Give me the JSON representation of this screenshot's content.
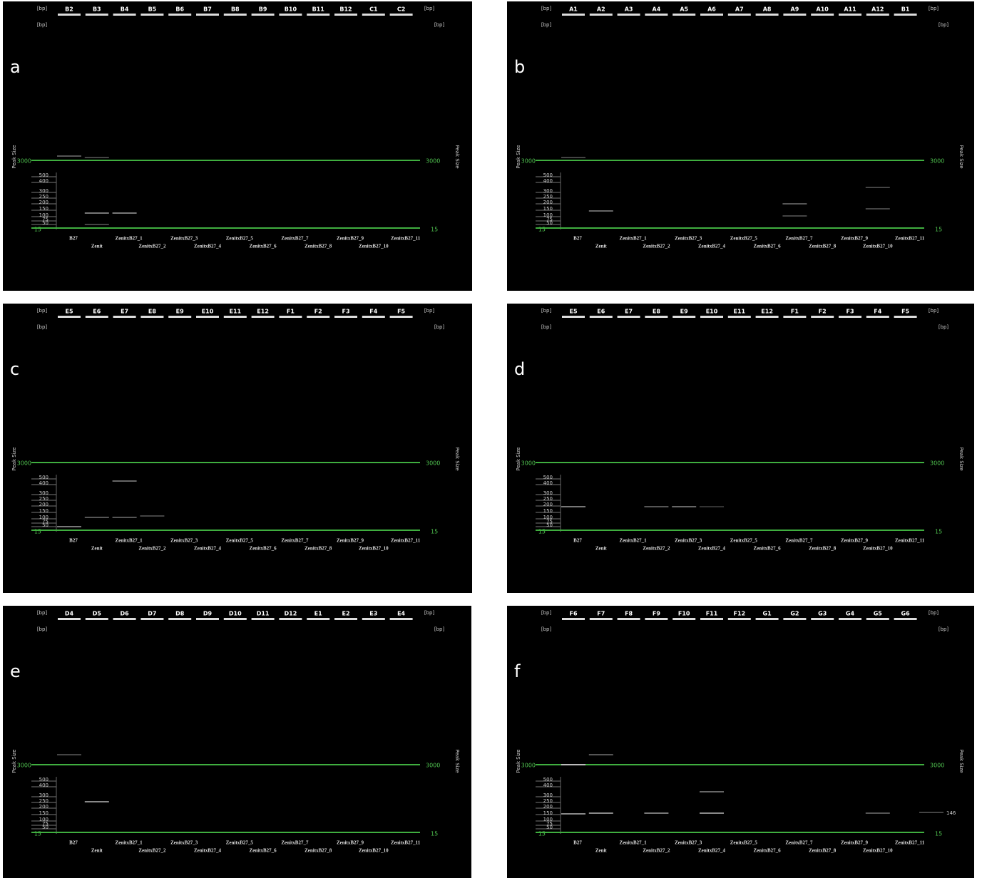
{
  "bp_label": "[bp]",
  "axis_title": "Peak Size",
  "top_marker": 3000,
  "bottom_marker": 15,
  "ladder": [
    500,
    400,
    300,
    250,
    200,
    150,
    100,
    75,
    50
  ],
  "samples": [
    "B27",
    "Zenit",
    "ZenitxB27_1",
    "ZenitxB27_2",
    "ZenitxB27_3",
    "ZenitxB27_4",
    "ZenitxB27_5",
    "ZenitxB27_6",
    "ZenitxB27_7",
    "ZenitxB27_8",
    "ZenitxB27_9",
    "ZenitxB27_10",
    "ZenitxB27_11"
  ],
  "panels": [
    {
      "label": "a",
      "wells": [
        "B2",
        "B3",
        "B4",
        "B5",
        "B6",
        "B7",
        "B8",
        "B9",
        "B10",
        "B11",
        "B12",
        "C1",
        "C2"
      ]
    },
    {
      "label": "b",
      "wells": [
        "A1",
        "A2",
        "A3",
        "A4",
        "A5",
        "A6",
        "A7",
        "A8",
        "A9",
        "A10",
        "A11",
        "A12",
        "B1"
      ]
    },
    {
      "label": "c",
      "wells": [
        "E5",
        "E6",
        "E7",
        "E8",
        "E9",
        "E10",
        "E11",
        "E12",
        "F1",
        "F2",
        "F3",
        "F4",
        "F5"
      ]
    },
    {
      "label": "d",
      "wells": [
        "E5",
        "E6",
        "E7",
        "E8",
        "E9",
        "E10",
        "E11",
        "E12",
        "F1",
        "F2",
        "F3",
        "F4",
        "F5"
      ]
    },
    {
      "label": "e",
      "wells": [
        "D4",
        "D5",
        "D6",
        "D7",
        "D8",
        "D9",
        "D10",
        "D11",
        "D12",
        "E1",
        "E2",
        "E3",
        "E4"
      ]
    },
    {
      "label": "f",
      "wells": [
        "F6",
        "F7",
        "F8",
        "F9",
        "F10",
        "F11",
        "F12",
        "G1",
        "G2",
        "G3",
        "G4",
        "G5",
        "G6"
      ],
      "annotation": "146"
    }
  ]
}
